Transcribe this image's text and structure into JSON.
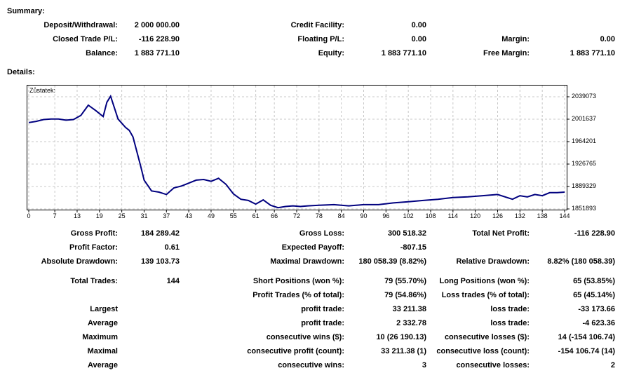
{
  "summary": {
    "heading": "Summary:",
    "deposit_label": "Deposit/Withdrawal:",
    "deposit_value": "2 000 000.00",
    "credit_label": "Credit Facility:",
    "credit_value": "0.00",
    "closed_pl_label": "Closed Trade P/L:",
    "closed_pl_value": "-116 228.90",
    "floating_pl_label": "Floating P/L:",
    "floating_pl_value": "0.00",
    "margin_label": "Margin:",
    "margin_value": "0.00",
    "balance_label": "Balance:",
    "balance_value": "1 883 771.10",
    "equity_label": "Equity:",
    "equity_value": "1 883 771.10",
    "free_margin_label": "Free Margin:",
    "free_margin_value": "1 883 771.10"
  },
  "details": {
    "heading": "Details:"
  },
  "chart_data": {
    "type": "line",
    "title": "Zůstatek:",
    "color": "#00007f",
    "grid": true,
    "ylim": [
      1839000,
      2050000
    ],
    "y_ticks": [
      "2039073",
      "2001637",
      "1964201",
      "1926765",
      "1889329",
      "1851893"
    ],
    "x_ticks": [
      "0",
      "7",
      "13",
      "19",
      "25",
      "31",
      "37",
      "43",
      "49",
      "55",
      "61",
      "66",
      "72",
      "78",
      "84",
      "90",
      "96",
      "102",
      "108",
      "114",
      "120",
      "126",
      "132",
      "138",
      "144"
    ],
    "x": [
      0,
      2,
      4,
      6,
      8,
      10,
      12,
      14,
      16,
      18,
      20,
      21,
      22,
      24,
      26,
      27,
      28,
      30,
      31,
      33,
      35,
      37,
      39,
      41,
      43,
      45,
      47,
      49,
      51,
      53,
      55,
      57,
      59,
      61,
      63,
      65,
      67,
      69,
      71,
      73,
      75,
      78,
      82,
      86,
      90,
      94,
      98,
      102,
      106,
      110,
      114,
      118,
      122,
      126,
      130,
      132,
      134,
      136,
      138,
      140,
      142,
      144
    ],
    "y": [
      1996000,
      1998000,
      2001000,
      2002000,
      2002000,
      2000000,
      2001000,
      2008000,
      2025000,
      2016000,
      2006000,
      2030000,
      2040000,
      2002000,
      1988000,
      1983000,
      1972000,
      1925000,
      1900000,
      1882000,
      1880000,
      1876000,
      1887000,
      1890000,
      1895000,
      1900000,
      1901000,
      1898000,
      1903000,
      1893000,
      1877000,
      1868000,
      1866000,
      1860000,
      1867000,
      1858000,
      1854000,
      1856000,
      1857000,
      1856000,
      1857000,
      1858000,
      1859000,
      1857000,
      1859000,
      1859000,
      1862000,
      1864000,
      1866000,
      1868000,
      1871000,
      1872000,
      1874000,
      1876000,
      1868000,
      1874000,
      1872000,
      1876000,
      1874000,
      1879000,
      1879000,
      1880000
    ]
  },
  "stats": {
    "gross_profit_label": "Gross Profit:",
    "gross_profit_value": "184 289.42",
    "gross_loss_label": "Gross Loss:",
    "gross_loss_value": "300 518.32",
    "total_net_profit_label": "Total Net Profit:",
    "total_net_profit_value": "-116 228.90",
    "profit_factor_label": "Profit Factor:",
    "profit_factor_value": "0.61",
    "expected_payoff_label": "Expected Payoff:",
    "expected_payoff_value": "-807.15",
    "abs_drawdown_label": "Absolute Drawdown:",
    "abs_drawdown_value": "139 103.73",
    "max_drawdown_label": "Maximal Drawdown:",
    "max_drawdown_value": "180 058.39 (8.82%)",
    "rel_drawdown_label": "Relative Drawdown:",
    "rel_drawdown_value": "8.82% (180 058.39)",
    "total_trades_label": "Total Trades:",
    "total_trades_value": "144",
    "short_pos_label": "Short Positions (won %):",
    "short_pos_value": "79 (55.70%)",
    "long_pos_label": "Long Positions (won %):",
    "long_pos_value": "65 (53.85%)",
    "profit_trades_label": "Profit Trades (% of total):",
    "profit_trades_value": "79 (54.86%)",
    "loss_trades_label": "Loss trades (% of total):",
    "loss_trades_value": "65 (45.14%)",
    "largest_label": "Largest",
    "largest_profit_label": "profit trade:",
    "largest_profit_value": "33 211.38",
    "largest_loss_label": "loss trade:",
    "largest_loss_value": "-33 173.66",
    "average_label": "Average",
    "avg_profit_label": "profit trade:",
    "avg_profit_value": "2 332.78",
    "avg_loss_label": "loss trade:",
    "avg_loss_value": "-4 623.36",
    "maximum_label": "Maximum",
    "max_cons_wins_label": "consecutive wins ($):",
    "max_cons_wins_value": "10 (26 190.13)",
    "max_cons_losses_label": "consecutive losses ($):",
    "max_cons_losses_value": "14 (-154 106.74)",
    "maximal_label": "Maximal",
    "maximal_cons_profit_label": "consecutive profit (count):",
    "maximal_cons_profit_value": "33 211.38 (1)",
    "maximal_cons_loss_label": "consecutive loss (count):",
    "maximal_cons_loss_value": "-154 106.74 (14)",
    "average2_label": "Average",
    "avg_cons_wins_label": "consecutive wins:",
    "avg_cons_wins_value": "3",
    "avg_cons_losses_label": "consecutive losses:",
    "avg_cons_losses_value": "2"
  }
}
